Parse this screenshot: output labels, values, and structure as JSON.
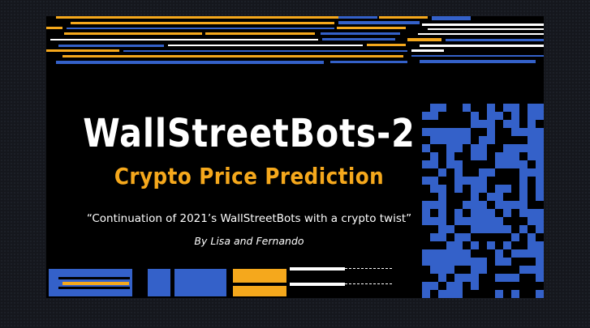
{
  "slide": {
    "title": "WallStreetBots-2",
    "subtitle": "Crypto Price Prediction",
    "quote": "“Continuation of 2021’s WallStreetBots with a crypto twist”",
    "authors": "By Lisa and Fernando"
  },
  "colors": {
    "accent_yellow": "#f5a81c",
    "accent_blue": "#3461c9",
    "background": "#000000",
    "text": "#ffffff"
  }
}
